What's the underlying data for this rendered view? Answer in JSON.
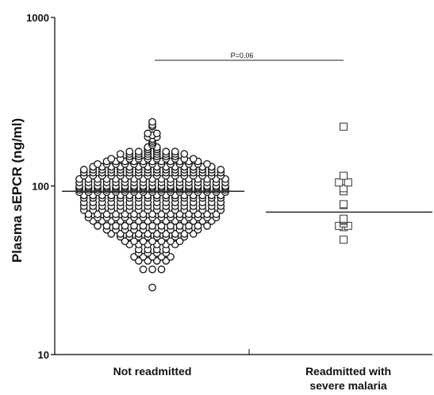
{
  "chart_data": {
    "type": "scatter",
    "subtype": "dot-plot",
    "ylabel": "Plasma sEPCR (ng/ml)",
    "yscale": "log",
    "ylim": [
      10,
      1000
    ],
    "yticks": [
      "10",
      "100",
      "1000"
    ],
    "categories": [
      "Not readmitted",
      "Readmitted with severe malaria"
    ],
    "category_lines": [
      [
        "Not readmitted"
      ],
      [
        "Readmitted with",
        "severe malaria"
      ]
    ],
    "annotation": "P=0.06",
    "series": [
      {
        "marker": "circle",
        "median": 93,
        "values": [
          240,
          230,
          225,
          205,
          205,
          200,
          195,
          195,
          190,
          185,
          180,
          175,
          170,
          170,
          165,
          165,
          160,
          160,
          160,
          160,
          160,
          160,
          155,
          155,
          155,
          155,
          155,
          155,
          155,
          155,
          150,
          150,
          150,
          150,
          150,
          150,
          145,
          145,
          145,
          145,
          145,
          145,
          145,
          145,
          145,
          145,
          140,
          140,
          140,
          140,
          140,
          140,
          140,
          140,
          140,
          140,
          140,
          135,
          135,
          135,
          135,
          135,
          135,
          135,
          135,
          135,
          135,
          135,
          135,
          135,
          130,
          130,
          130,
          130,
          130,
          130,
          130,
          130,
          130,
          130,
          130,
          130,
          130,
          130,
          125,
          125,
          125,
          125,
          125,
          125,
          125,
          125,
          125,
          125,
          125,
          125,
          125,
          125,
          125,
          125,
          120,
          120,
          120,
          120,
          120,
          120,
          120,
          120,
          120,
          120,
          120,
          120,
          120,
          120,
          120,
          120,
          115,
          115,
          115,
          115,
          115,
          115,
          115,
          115,
          115,
          115,
          115,
          115,
          115,
          115,
          115,
          115,
          110,
          110,
          110,
          110,
          110,
          110,
          110,
          110,
          110,
          110,
          110,
          110,
          110,
          110,
          110,
          110,
          110,
          105,
          105,
          105,
          105,
          105,
          105,
          105,
          105,
          105,
          105,
          105,
          105,
          105,
          105,
          105,
          105,
          105,
          100,
          100,
          100,
          100,
          100,
          100,
          100,
          100,
          100,
          100,
          100,
          100,
          100,
          100,
          100,
          100,
          100,
          98,
          98,
          98,
          98,
          98,
          98,
          98,
          98,
          98,
          98,
          98,
          98,
          98,
          98,
          98,
          98,
          98,
          95,
          95,
          95,
          95,
          95,
          95,
          95,
          95,
          95,
          95,
          95,
          95,
          95,
          95,
          95,
          95,
          95,
          92,
          92,
          92,
          92,
          92,
          92,
          92,
          92,
          92,
          92,
          92,
          92,
          92,
          92,
          92,
          92,
          92,
          88,
          88,
          88,
          88,
          88,
          88,
          88,
          88,
          88,
          88,
          88,
          88,
          88,
          88,
          88,
          88,
          85,
          85,
          85,
          85,
          85,
          85,
          85,
          85,
          85,
          85,
          85,
          85,
          85,
          85,
          85,
          85,
          80,
          80,
          80,
          80,
          80,
          80,
          80,
          80,
          80,
          80,
          80,
          80,
          80,
          80,
          80,
          80,
          76,
          76,
          76,
          76,
          76,
          76,
          76,
          76,
          76,
          76,
          76,
          76,
          76,
          76,
          76,
          76,
          72,
          72,
          72,
          72,
          72,
          72,
          72,
          72,
          72,
          72,
          72,
          72,
          72,
          72,
          72,
          72,
          68,
          68,
          68,
          68,
          68,
          68,
          68,
          68,
          68,
          68,
          68,
          68,
          68,
          68,
          68,
          65,
          65,
          65,
          65,
          65,
          65,
          65,
          65,
          65,
          65,
          65,
          65,
          65,
          65,
          65,
          62,
          62,
          62,
          62,
          62,
          62,
          62,
          62,
          62,
          62,
          62,
          62,
          62,
          62,
          58,
          58,
          58,
          58,
          58,
          58,
          58,
          58,
          58,
          58,
          58,
          58,
          58,
          55,
          55,
          55,
          55,
          55,
          55,
          55,
          55,
          55,
          55,
          55,
          52,
          52,
          52,
          52,
          52,
          52,
          52,
          52,
          52,
          52,
          50,
          50,
          50,
          50,
          50,
          50,
          50,
          50,
          47,
          47,
          47,
          47,
          47,
          47,
          47,
          45,
          45,
          45,
          45,
          45,
          45,
          42,
          42,
          42,
          42,
          40,
          40,
          40,
          40,
          38,
          38,
          38,
          38,
          38,
          36,
          36,
          36,
          36,
          32,
          32,
          32,
          25
        ]
      },
      {
        "marker": "square",
        "median": 70,
        "values": [
          225,
          115,
          105,
          105,
          97,
          93,
          78,
          77,
          64,
          63,
          62,
          60,
          58,
          58,
          57,
          48
        ]
      }
    ]
  }
}
